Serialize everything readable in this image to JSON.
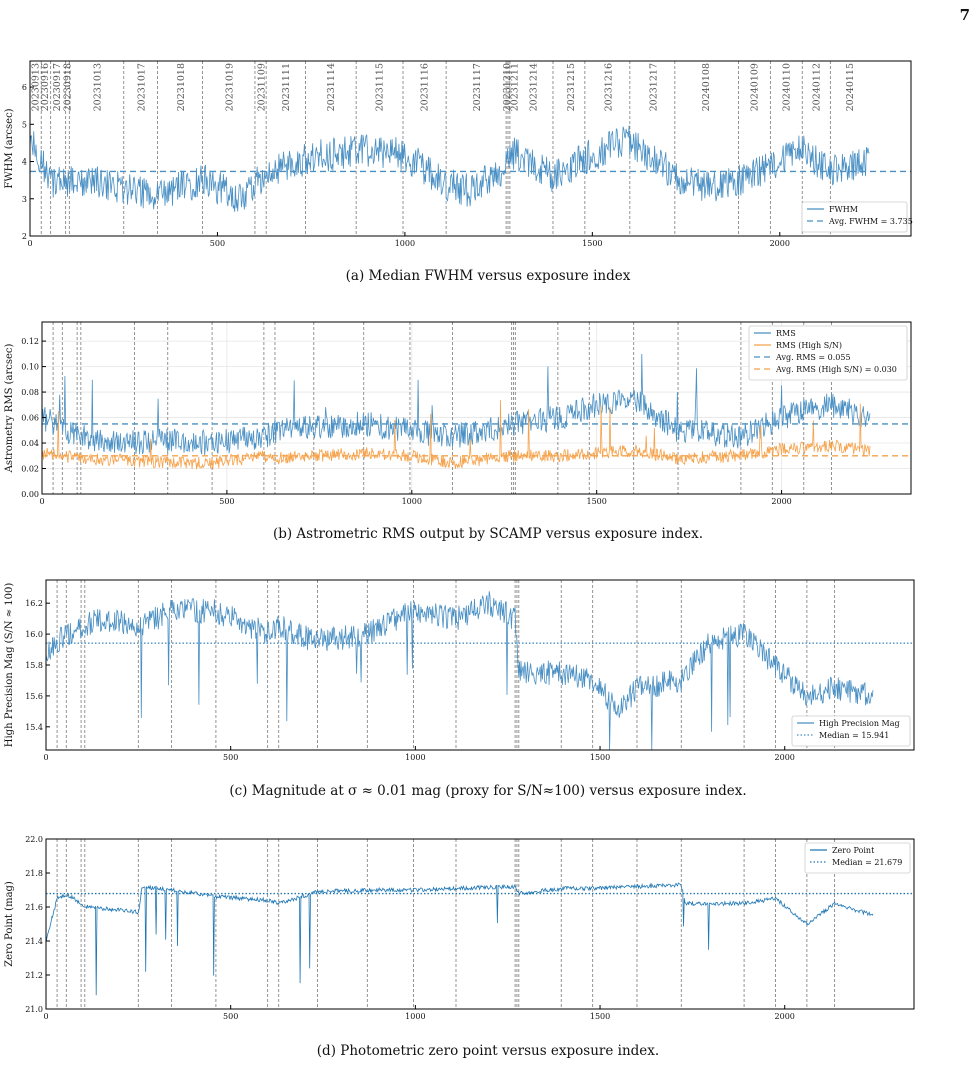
{
  "page_number": "7",
  "colors": {
    "blue": "#4a90c4",
    "orange": "#f5a24b",
    "dark_blue": "#1f77b4",
    "vline": "#888888"
  },
  "chart_data": [
    {
      "id": "a",
      "type": "line",
      "caption": "(a) Median FWHM versus exposure index",
      "ylabel": "FWHM (arcsec)",
      "xlim": [
        0,
        2350
      ],
      "ylim": [
        2,
        6.7
      ],
      "xticks": [
        0,
        500,
        1000,
        1500,
        2000
      ],
      "yticks": [
        2,
        3,
        4,
        5,
        6
      ],
      "night_boundaries": [
        30,
        55,
        95,
        105,
        250,
        340,
        460,
        600,
        630,
        735,
        870,
        995,
        1110,
        1270,
        1275,
        1280,
        1395,
        1480,
        1600,
        1720,
        1890,
        1975,
        2060,
        2135
      ],
      "date_labels": [
        {
          "x": 12,
          "label": "20230913"
        },
        {
          "x": 38,
          "label": "20230916"
        },
        {
          "x": 70,
          "label": "20230917"
        },
        {
          "x": 98,
          "label": "20230918"
        },
        {
          "x": 178,
          "label": "20231013"
        },
        {
          "x": 295,
          "label": "20231017"
        },
        {
          "x": 400,
          "label": "20231018"
        },
        {
          "x": 530,
          "label": "20231019"
        },
        {
          "x": 615,
          "label": "20231109"
        },
        {
          "x": 680,
          "label": "20231111"
        },
        {
          "x": 800,
          "label": "20231114"
        },
        {
          "x": 930,
          "label": "20231115"
        },
        {
          "x": 1050,
          "label": "20231116"
        },
        {
          "x": 1190,
          "label": "20231117"
        },
        {
          "x": 1270,
          "label": "20231210"
        },
        {
          "x": 1290,
          "label": "20231211"
        },
        {
          "x": 1340,
          "label": "20231214"
        },
        {
          "x": 1440,
          "label": "20231215"
        },
        {
          "x": 1540,
          "label": "20231216"
        },
        {
          "x": 1660,
          "label": "20231217"
        },
        {
          "x": 1800,
          "label": "20240108"
        },
        {
          "x": 1930,
          "label": "20240109"
        },
        {
          "x": 2015,
          "label": "20240110"
        },
        {
          "x": 2095,
          "label": "20240112"
        },
        {
          "x": 2185,
          "label": "20240115"
        }
      ],
      "series": [
        {
          "name": "FWHM",
          "style": "solid",
          "color": "#4a90c4",
          "segments": [
            [
              0,
              4.6
            ],
            [
              60,
              3.4
            ],
            [
              150,
              3.5
            ],
            [
              250,
              3.3
            ],
            [
              340,
              3.1
            ],
            [
              460,
              3.5
            ],
            [
              560,
              3.0
            ],
            [
              600,
              3.4
            ],
            [
              640,
              3.7
            ],
            [
              740,
              4.1
            ],
            [
              870,
              4.3
            ],
            [
              995,
              4.2
            ],
            [
              1110,
              3.4
            ],
            [
              1180,
              3.2
            ],
            [
              1260,
              3.8
            ],
            [
              1280,
              4.3
            ],
            [
              1350,
              3.8
            ],
            [
              1400,
              3.6
            ],
            [
              1480,
              4.1
            ],
            [
              1600,
              4.6
            ],
            [
              1720,
              3.6
            ],
            [
              1800,
              3.3
            ],
            [
              1890,
              3.5
            ],
            [
              1975,
              3.9
            ],
            [
              2060,
              4.3
            ],
            [
              2135,
              3.7
            ],
            [
              2240,
              4.0
            ]
          ]
        },
        {
          "name": "Avg. FWHM = 3.735",
          "style": "dashed",
          "color": "#4a90c4",
          "value": 3.735
        }
      ],
      "legend": "lower-right"
    },
    {
      "id": "b",
      "type": "line",
      "caption": "(b) Astrometric RMS output by SCAMP versus exposure index.",
      "ylabel": "Astrometry RMS (arcsec)",
      "xlim": [
        0,
        2350
      ],
      "ylim": [
        0.0,
        0.135
      ],
      "xticks": [
        0,
        500,
        1000,
        1500,
        2000
      ],
      "yticks": [
        0.0,
        0.02,
        0.04,
        0.06,
        0.08,
        0.1,
        0.12
      ],
      "night_boundaries": [
        30,
        55,
        95,
        105,
        250,
        340,
        460,
        600,
        630,
        735,
        870,
        995,
        1110,
        1270,
        1275,
        1280,
        1395,
        1480,
        1600,
        1720,
        1890,
        1975,
        2060,
        2135
      ],
      "series": [
        {
          "name": "RMS",
          "style": "solid",
          "color": "#4a90c4",
          "segments": [
            [
              0,
              0.06
            ],
            [
              100,
              0.045
            ],
            [
              250,
              0.04
            ],
            [
              340,
              0.042
            ],
            [
              460,
              0.04
            ],
            [
              600,
              0.045
            ],
            [
              630,
              0.05
            ],
            [
              735,
              0.052
            ],
            [
              870,
              0.055
            ],
            [
              995,
              0.05
            ],
            [
              1110,
              0.045
            ],
            [
              1270,
              0.055
            ],
            [
              1400,
              0.06
            ],
            [
              1500,
              0.07
            ],
            [
              1600,
              0.075
            ],
            [
              1720,
              0.05
            ],
            [
              1890,
              0.045
            ],
            [
              2000,
              0.06
            ],
            [
              2135,
              0.07
            ],
            [
              2240,
              0.06
            ]
          ]
        },
        {
          "name": "RMS (High S/N)",
          "style": "solid",
          "color": "#f5a24b",
          "segments": [
            [
              0,
              0.032
            ],
            [
              100,
              0.028
            ],
            [
              250,
              0.026
            ],
            [
              340,
              0.025
            ],
            [
              460,
              0.024
            ],
            [
              600,
              0.03
            ],
            [
              630,
              0.028
            ],
            [
              735,
              0.03
            ],
            [
              870,
              0.032
            ],
            [
              995,
              0.03
            ],
            [
              1110,
              0.024
            ],
            [
              1270,
              0.03
            ],
            [
              1400,
              0.03
            ],
            [
              1500,
              0.032
            ],
            [
              1600,
              0.034
            ],
            [
              1720,
              0.028
            ],
            [
              1890,
              0.03
            ],
            [
              2000,
              0.035
            ],
            [
              2135,
              0.038
            ],
            [
              2240,
              0.034
            ]
          ]
        },
        {
          "name": "Avg. RMS = 0.055",
          "style": "dashed",
          "color": "#4a90c4",
          "value": 0.055
        },
        {
          "name": "Avg. RMS (High S/N) = 0.030",
          "style": "dashed",
          "color": "#f5a24b",
          "value": 0.03
        }
      ],
      "legend": "top-right"
    },
    {
      "id": "c",
      "type": "line",
      "caption": "(c) Magnitude at σ ≈ 0.01 mag (proxy for S/N≈100) versus exposure index.",
      "ylabel": "High Precision Mag (S/N ≈ 100)",
      "xlim": [
        0,
        2350
      ],
      "ylim": [
        15.25,
        16.35
      ],
      "xticks": [
        0,
        500,
        1000,
        1500,
        2000
      ],
      "yticks": [
        15.4,
        15.6,
        15.8,
        16.0,
        16.2
      ],
      "night_boundaries": [
        30,
        55,
        95,
        105,
        250,
        340,
        460,
        600,
        630,
        735,
        870,
        995,
        1110,
        1270,
        1275,
        1280,
        1395,
        1480,
        1600,
        1720,
        1890,
        1975,
        2060,
        2135
      ],
      "series": [
        {
          "name": "High Precision Mag",
          "style": "solid",
          "color": "#4a90c4",
          "segments": [
            [
              0,
              15.9
            ],
            [
              60,
              16.0
            ],
            [
              150,
              16.1
            ],
            [
              250,
              16.05
            ],
            [
              340,
              16.15
            ],
            [
              460,
              16.15
            ],
            [
              600,
              16.0
            ],
            [
              630,
              16.05
            ],
            [
              735,
              15.95
            ],
            [
              870,
              16.0
            ],
            [
              995,
              16.15
            ],
            [
              1110,
              16.1
            ],
            [
              1200,
              16.2
            ],
            [
              1270,
              16.1
            ],
            [
              1280,
              15.75
            ],
            [
              1400,
              15.75
            ],
            [
              1480,
              15.7
            ],
            [
              1550,
              15.5
            ],
            [
              1600,
              15.65
            ],
            [
              1720,
              15.7
            ],
            [
              1800,
              15.95
            ],
            [
              1890,
              16.0
            ],
            [
              1975,
              15.8
            ],
            [
              2060,
              15.6
            ],
            [
              2135,
              15.65
            ],
            [
              2240,
              15.6
            ]
          ]
        },
        {
          "name": "Median = 15.941",
          "style": "dotted",
          "color": "#4a90c4",
          "value": 15.941
        }
      ],
      "legend": "lower-right"
    },
    {
      "id": "d",
      "type": "line",
      "caption": "(d) Photometric zero point versus exposure index.",
      "ylabel": "Zero Point (mag)",
      "xlim": [
        0,
        2350
      ],
      "ylim": [
        21.0,
        22.0
      ],
      "xticks": [
        0,
        500,
        1000,
        1500,
        2000
      ],
      "yticks": [
        21.0,
        21.2,
        21.4,
        21.6,
        21.8,
        22.0
      ],
      "night_boundaries": [
        30,
        55,
        95,
        105,
        250,
        340,
        460,
        600,
        630,
        735,
        870,
        995,
        1110,
        1270,
        1275,
        1280,
        1395,
        1480,
        1600,
        1720,
        1890,
        1975,
        2060,
        2135
      ],
      "series": [
        {
          "name": "Zero Point",
          "style": "solid",
          "color": "#1f77b4",
          "segments": [
            [
              0,
              21.4
            ],
            [
              30,
              21.65
            ],
            [
              60,
              21.67
            ],
            [
              110,
              21.6
            ],
            [
              250,
              21.57
            ],
            [
              260,
              21.72
            ],
            [
              340,
              21.7
            ],
            [
              460,
              21.66
            ],
            [
              600,
              21.64
            ],
            [
              630,
              21.62
            ],
            [
              735,
              21.69
            ],
            [
              870,
              21.7
            ],
            [
              995,
              21.7
            ],
            [
              1110,
              21.71
            ],
            [
              1270,
              21.72
            ],
            [
              1280,
              21.68
            ],
            [
              1400,
              21.71
            ],
            [
              1480,
              21.71
            ],
            [
              1600,
              21.72
            ],
            [
              1720,
              21.73
            ],
            [
              1730,
              21.62
            ],
            [
              1890,
              21.62
            ],
            [
              1975,
              21.65
            ],
            [
              2060,
              21.5
            ],
            [
              2135,
              21.62
            ],
            [
              2240,
              21.55
            ]
          ]
        },
        {
          "name": "Median = 21.679",
          "style": "dotted",
          "color": "#1f77b4",
          "value": 21.679
        }
      ],
      "legend": "top-right"
    }
  ]
}
